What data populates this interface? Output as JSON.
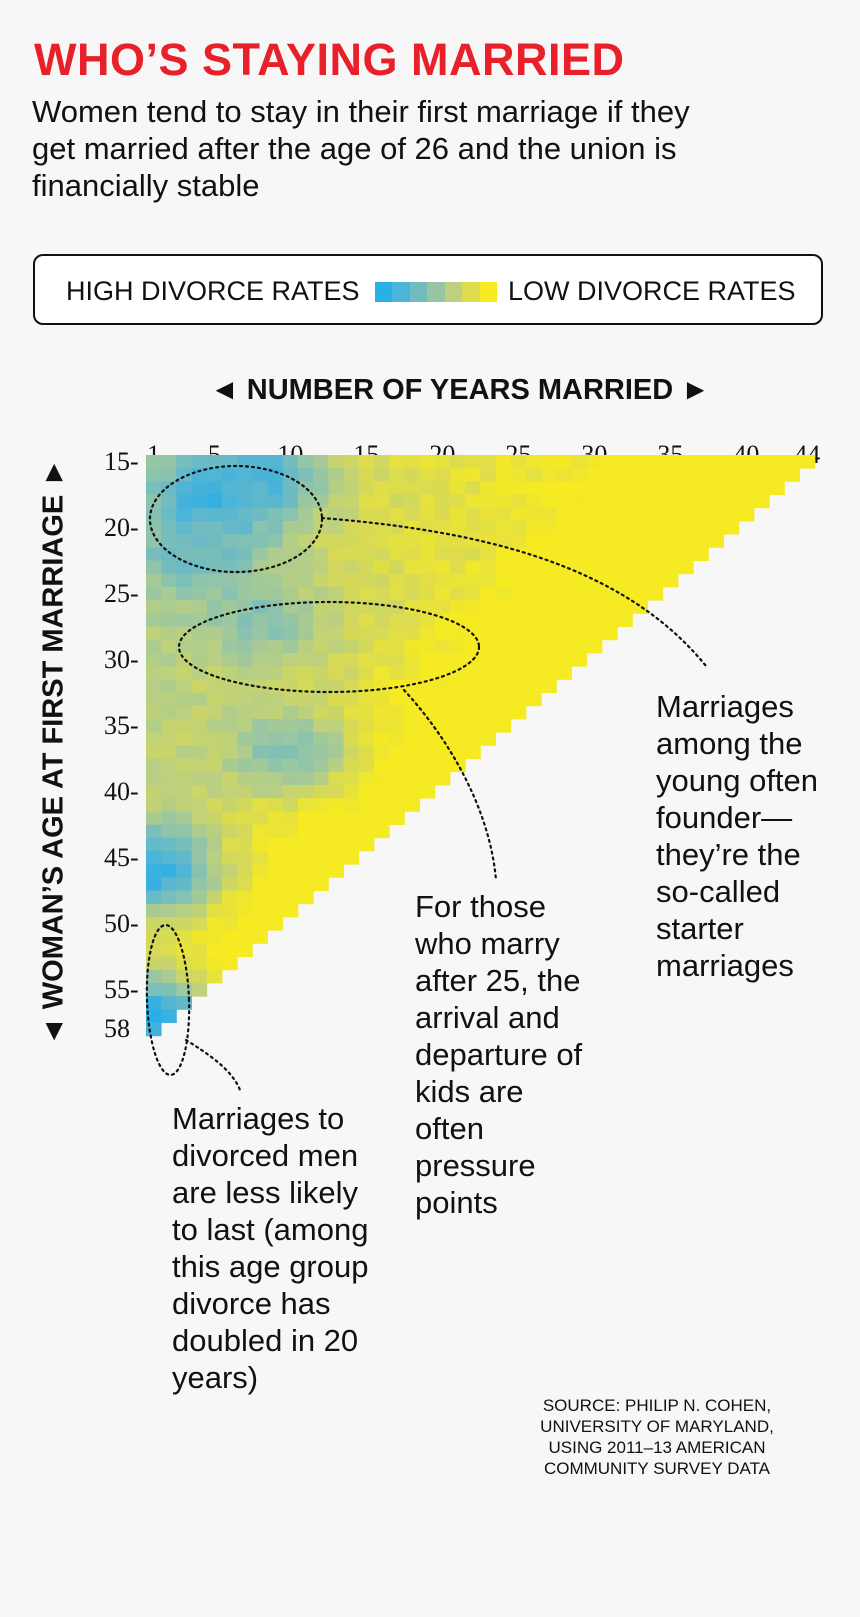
{
  "header": {
    "title": "WHO’S STAYING MARRIED",
    "subtitle": "Women tend to stay in their first marriage if they get married after the age of 26 and the union is financially stable"
  },
  "legend": {
    "high_label": "HIGH DIVORCE RATES",
    "low_label": "LOW DIVORCE RATES",
    "colors": [
      "#2aaee6",
      "#4cb4d8",
      "#72bcc0",
      "#98c6a4",
      "#bcd07e",
      "#dcdc4e",
      "#f6ea22"
    ]
  },
  "annotations": {
    "starter": "Marriages among the young often founder— they’re the so-called starter marriages",
    "kids": "For those who marry after 25, the arrival and departure of kids are often pressure points",
    "divorced": "Marriages to divorced men are less likely to last (among this age group divorce has doubled in 20 years)"
  },
  "source": "SOURCE: PHILIP N. COHEN, UNIVERSITY OF MARYLAND, USING 2011–13 AMERICAN COMMUNITY SURVEY DATA",
  "chart_data": {
    "type": "heatmap",
    "xlabel": "◄ NUMBER OF YEARS MARRIED ►",
    "ylabel": "◄ WOMAN’S AGE AT FIRST MARRIAGE ►",
    "x_ticks": [
      "1",
      "5",
      "10",
      "15",
      "20",
      "25",
      "30",
      "35",
      "40",
      "44"
    ],
    "y_ticks": [
      "15",
      "20",
      "25",
      "30",
      "35",
      "40",
      "45",
      "50",
      "55",
      "58"
    ],
    "x_range": [
      1,
      44
    ],
    "y_range": [
      15,
      58
    ],
    "constraint": "years_married + age_at_first_marriage <= 59",
    "value_scale": "0 = high divorce rate, 1 = low divorce rate",
    "hotspots": [
      {
        "age": 18,
        "years": 5,
        "value": 0.0
      },
      {
        "age": 16,
        "years": 8,
        "value": 0.15
      },
      {
        "age": 22,
        "years": 4,
        "value": 0.3
      },
      {
        "age": 27,
        "years": 8,
        "value": 0.42
      },
      {
        "age": 37,
        "years": 10,
        "value": 0.4
      },
      {
        "age": 46,
        "years": 1,
        "value": 0.05
      },
      {
        "age": 57,
        "years": 1,
        "value": 0.0
      }
    ]
  }
}
